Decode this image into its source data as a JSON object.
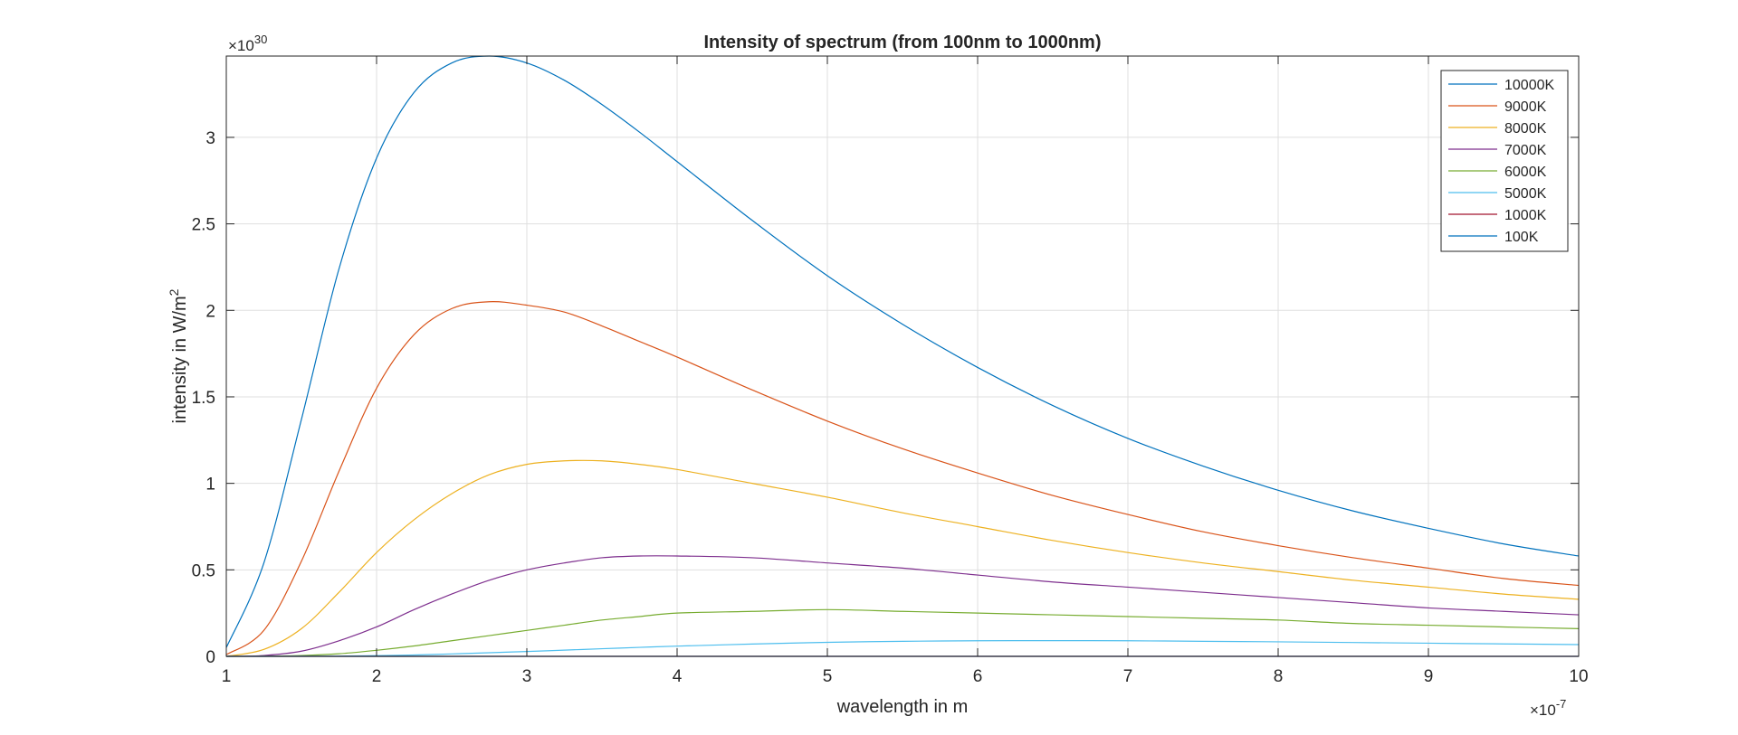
{
  "chart_data": {
    "type": "line",
    "title": "Intensity of spectrum (from 100nm to 1000nm)",
    "xlabel": "wavelength in m",
    "ylabel_main": "intensity in W/m",
    "ylabel_sup": "2",
    "x_exponent": {
      "base": "×10",
      "sup": "-7"
    },
    "y_exponent": {
      "base": "×10",
      "sup": "30"
    },
    "xlim": [
      1,
      10
    ],
    "ylim": [
      0,
      3.47
    ],
    "xticks": [
      1,
      2,
      3,
      4,
      5,
      6,
      7,
      8,
      9,
      10
    ],
    "xtick_labels": [
      "1",
      "2",
      "3",
      "4",
      "5",
      "6",
      "7",
      "8",
      "9",
      "10"
    ],
    "yticks": [
      0,
      0.5,
      1,
      1.5,
      2,
      2.5,
      3
    ],
    "ytick_labels": [
      "0",
      "0.5",
      "1",
      "1.5",
      "2",
      "2.5",
      "3"
    ],
    "grid": true,
    "legend_position": "top-right",
    "x": [
      1,
      1.25,
      1.5,
      1.75,
      2,
      2.25,
      2.5,
      2.75,
      3,
      3.25,
      3.5,
      3.75,
      4,
      4.5,
      5,
      5.5,
      6,
      6.5,
      7,
      7.5,
      8,
      8.5,
      9,
      9.5,
      10
    ],
    "series": [
      {
        "name": "10000K",
        "color": "#0072BD",
        "values": [
          0.05,
          0.54,
          1.37,
          2.24,
          2.88,
          3.26,
          3.43,
          3.47,
          3.43,
          3.33,
          3.19,
          3.03,
          2.86,
          2.52,
          2.2,
          1.92,
          1.67,
          1.45,
          1.26,
          1.1,
          0.96,
          0.84,
          0.74,
          0.65,
          0.58
        ]
      },
      {
        "name": "9000K",
        "color": "#D95319",
        "values": [
          0.01,
          0.15,
          0.55,
          1.07,
          1.55,
          1.86,
          2.01,
          2.05,
          2.03,
          1.99,
          1.91,
          1.82,
          1.73,
          1.54,
          1.36,
          1.2,
          1.06,
          0.93,
          0.82,
          0.72,
          0.64,
          0.57,
          0.51,
          0.45,
          0.41
        ]
      },
      {
        "name": "8000K",
        "color": "#EDB120",
        "values": [
          0.0,
          0.04,
          0.16,
          0.37,
          0.6,
          0.79,
          0.94,
          1.05,
          1.11,
          1.13,
          1.13,
          1.11,
          1.08,
          1.0,
          0.92,
          0.83,
          0.75,
          0.67,
          0.6,
          0.54,
          0.49,
          0.44,
          0.4,
          0.36,
          0.33
        ]
      },
      {
        "name": "7000K",
        "color": "#7E2F8E",
        "values": [
          0.0,
          0.005,
          0.03,
          0.09,
          0.17,
          0.27,
          0.36,
          0.44,
          0.5,
          0.54,
          0.57,
          0.58,
          0.58,
          0.57,
          0.54,
          0.51,
          0.47,
          0.43,
          0.4,
          0.37,
          0.34,
          0.31,
          0.28,
          0.26,
          0.24
        ]
      },
      {
        "name": "6000K",
        "color": "#77AC30",
        "values": [
          0.0,
          0.001,
          0.005,
          0.015,
          0.035,
          0.06,
          0.09,
          0.12,
          0.15,
          0.18,
          0.21,
          0.23,
          0.25,
          0.26,
          0.27,
          0.26,
          0.25,
          0.24,
          0.23,
          0.22,
          0.21,
          0.19,
          0.18,
          0.17,
          0.16
        ]
      },
      {
        "name": "5000K",
        "color": "#4DBEEE",
        "values": [
          0.0,
          0.0,
          0.0005,
          0.0015,
          0.004,
          0.008,
          0.014,
          0.021,
          0.028,
          0.036,
          0.044,
          0.052,
          0.059,
          0.071,
          0.081,
          0.087,
          0.09,
          0.091,
          0.09,
          0.087,
          0.084,
          0.08,
          0.076,
          0.072,
          0.068
        ]
      },
      {
        "name": "1000K",
        "color": "#A2142F",
        "values": [
          0,
          0,
          0,
          0,
          0,
          0,
          0,
          0,
          0,
          0,
          0,
          0,
          0,
          0,
          0,
          0,
          0,
          0,
          0,
          0,
          0,
          0,
          0,
          0,
          0
        ]
      },
      {
        "name": "100K",
        "color": "#0072BD",
        "values": [
          0,
          0,
          0,
          0,
          0,
          0,
          0,
          0,
          0,
          0,
          0,
          0,
          0,
          0,
          0,
          0,
          0,
          0,
          0,
          0,
          0,
          0,
          0,
          0,
          0
        ]
      }
    ]
  }
}
